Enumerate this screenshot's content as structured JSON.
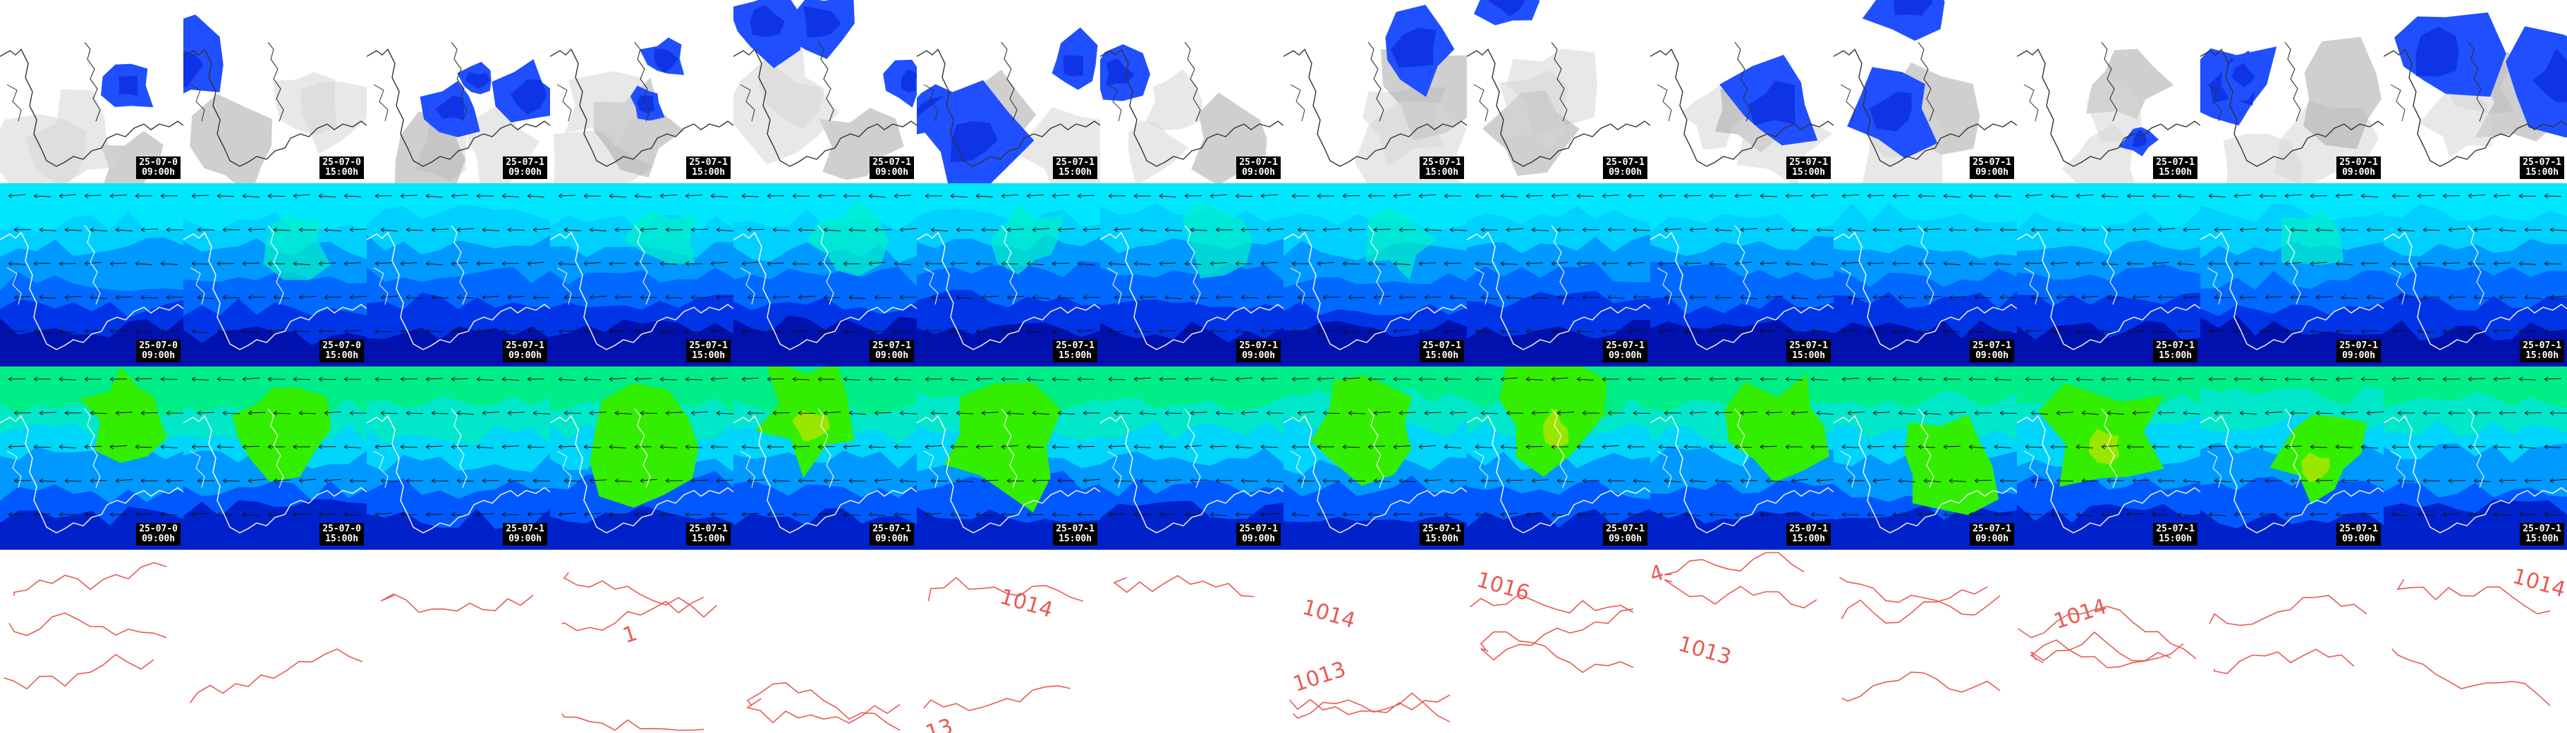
{
  "grid": {
    "columns": 14,
    "map_rows": [
      {
        "name": "precipitation",
        "base_color": "#ffffff",
        "palette": [
          "#ffffff",
          "#d6d6d6",
          "#a8a8a8",
          "#1f4fff",
          "#0b2de0",
          "#0018c8"
        ]
      },
      {
        "name": "humidity-low",
        "base_color": "#00e6ff",
        "palette": [
          "#00e6ff",
          "#00cfff",
          "#0096ff",
          "#0066ff",
          "#0033e6",
          "#0010aa",
          "#00f0c8"
        ]
      },
      {
        "name": "humidity-mid",
        "base_color": "#00ee88",
        "palette": [
          "#00ee88",
          "#00e6cc",
          "#00d4ff",
          "#0096ff",
          "#0055ff",
          "#0020c8",
          "#33ee00",
          "#99e600"
        ]
      }
    ],
    "isobar_row": {
      "name": "pressure-isobars",
      "line_color": "#e85a55"
    }
  },
  "stamps": [
    {
      "date": "25-07-0",
      "time": "09:00h"
    },
    {
      "date": "25-07-0",
      "time": "15:00h"
    },
    {
      "date": "25-07-1",
      "time": "09:00h"
    },
    {
      "date": "25-07-1",
      "time": "15:00h"
    },
    {
      "date": "25-07-1",
      "time": "09:00h"
    },
    {
      "date": "25-07-1",
      "time": "15:00h"
    },
    {
      "date": "25-07-1",
      "time": "09:00h"
    },
    {
      "date": "25-07-1",
      "time": "15:00h"
    },
    {
      "date": "25-07-1",
      "time": "09:00h"
    },
    {
      "date": "25-07-1",
      "time": "15:00h"
    },
    {
      "date": "25-07-1",
      "time": "09:00h"
    },
    {
      "date": "25-07-1",
      "time": "15:00h"
    },
    {
      "date": "25-07-1",
      "time": "09:00h"
    },
    {
      "date": "25-07-1",
      "time": "15:00h"
    }
  ],
  "isobar_labels": [
    {
      "col": 5,
      "text": "1014"
    },
    {
      "col": 5,
      "text": "13"
    },
    {
      "col": 7,
      "text": "1014"
    },
    {
      "col": 7,
      "text": "1013"
    },
    {
      "col": 8,
      "text": "1016"
    },
    {
      "col": 9,
      "text": "4"
    },
    {
      "col": 9,
      "text": "1013"
    },
    {
      "col": 11,
      "text": "1014"
    },
    {
      "col": 13,
      "text": "1014"
    },
    {
      "col": 3,
      "text": "1"
    }
  ]
}
